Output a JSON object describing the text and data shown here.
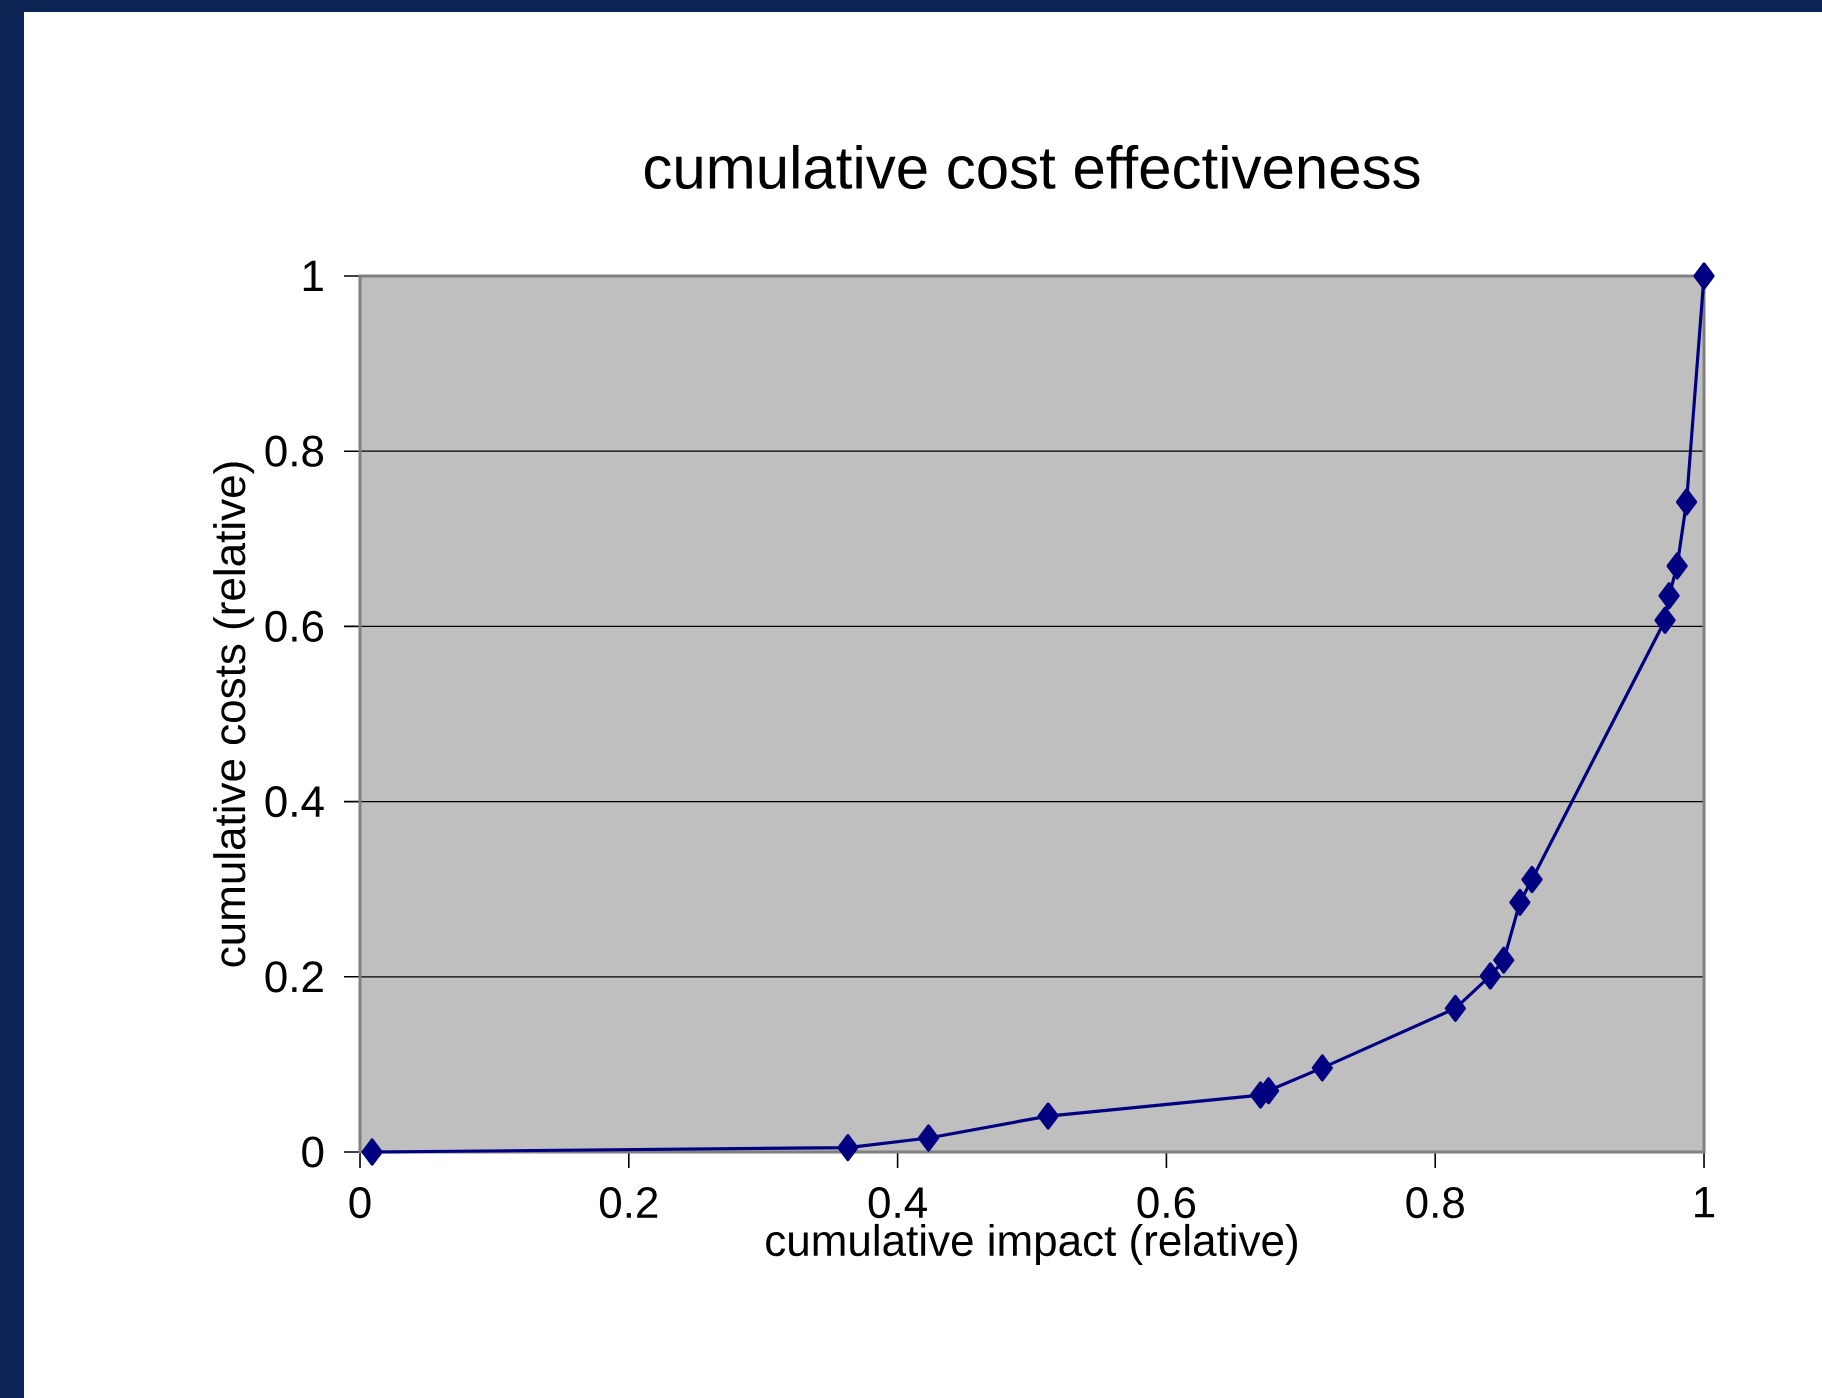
{
  "chart_data": {
    "type": "line",
    "title": "cumulative cost effectiveness",
    "xlabel": "cumulative impact (relative)",
    "ylabel": "cumulative costs (relative)",
    "x": [
      0.009,
      0.363,
      0.423,
      0.512,
      0.67,
      0.676,
      0.716,
      0.815,
      0.841,
      0.851,
      0.863,
      0.872,
      0.971,
      0.974,
      0.98,
      0.987,
      1.0
    ],
    "series": [
      {
        "color": "#000080",
        "values": [
          0,
          0.005,
          0.016,
          0.041,
          0.065,
          0.07,
          0.096,
          0.164,
          0.201,
          0.219,
          0.285,
          0.311,
          0.607,
          0.635,
          0.669,
          0.742,
          1.0
        ]
      }
    ],
    "xlim": [
      0,
      1
    ],
    "ylim": [
      0,
      1
    ],
    "xticks": [
      0,
      0.2,
      0.4,
      0.6,
      0.8,
      1
    ],
    "yticks": [
      0,
      0.2,
      0.4,
      0.6,
      0.8,
      1
    ],
    "grid": "y",
    "marker": "diamond",
    "line_style": "solid"
  }
}
